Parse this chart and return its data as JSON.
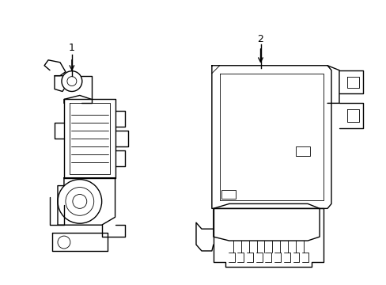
{
  "bg_color": "#ffffff",
  "line_color": "#000000",
  "lw": 1.0,
  "lw_thin": 0.6,
  "figsize": [
    4.89,
    3.6
  ],
  "dpi": 100,
  "label1": "1",
  "label2": "2"
}
